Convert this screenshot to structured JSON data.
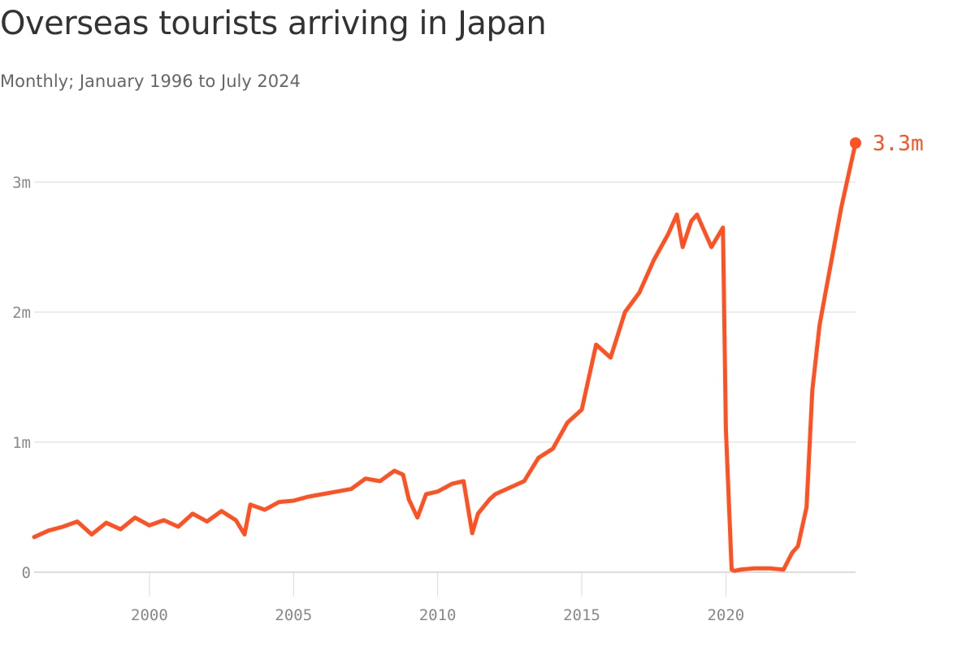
{
  "title": "Overseas tourists arriving in Japan",
  "subtitle": "Monthly; January 1996 to July 2024",
  "chart_data": {
    "type": "line",
    "title": "Overseas tourists arriving in Japan",
    "subtitle": "Monthly; January 1996 to July 2024",
    "xlabel": "",
    "ylabel": "",
    "color": "#ff5122",
    "grid": true,
    "legend": "none",
    "xlim": [
      1996,
      2024.5
    ],
    "ylim": [
      0,
      3300000
    ],
    "x_ticks": [
      {
        "value": 2000,
        "label": "2000"
      },
      {
        "value": 2005,
        "label": "2005"
      },
      {
        "value": 2010,
        "label": "2010"
      },
      {
        "value": 2015,
        "label": "2015"
      },
      {
        "value": 2020,
        "label": "2020"
      }
    ],
    "y_ticks": [
      {
        "value": 0,
        "label": "0"
      },
      {
        "value": 1000000,
        "label": "1m"
      },
      {
        "value": 2000000,
        "label": "2m"
      },
      {
        "value": 3000000,
        "label": "3m"
      }
    ],
    "end_label": "3.3m",
    "series": [
      {
        "x": [
          1996.0,
          1996.5,
          1997.0,
          1997.5,
          1998.0,
          1998.5,
          1999.0,
          1999.5,
          2000.0,
          2000.5,
          2001.0,
          2001.5,
          2002.0,
          2002.5,
          2003.0,
          2003.3,
          2003.5,
          2004.0,
          2004.5,
          2005.0,
          2005.5,
          2006.0,
          2006.5,
          2007.0,
          2007.5,
          2008.0,
          2008.5,
          2008.8,
          2009.0,
          2009.3,
          2009.6,
          2010.0,
          2010.5,
          2010.9,
          2011.2,
          2011.4,
          2011.8,
          2012.0,
          2012.5,
          2013.0,
          2013.5,
          2014.0,
          2014.5,
          2015.0,
          2015.5,
          2016.0,
          2016.5,
          2017.0,
          2017.5,
          2018.0,
          2018.3,
          2018.5,
          2018.8,
          2019.0,
          2019.5,
          2019.9,
          2020.0,
          2020.2,
          2020.3,
          2020.5,
          2021.0,
          2021.5,
          2022.0,
          2022.3,
          2022.5,
          2022.8,
          2023.0,
          2023.25,
          2023.5,
          2023.75,
          2024.0,
          2024.25,
          2024.5
        ],
        "values": [
          270000,
          320000,
          350000,
          390000,
          290000,
          380000,
          330000,
          420000,
          360000,
          400000,
          350000,
          450000,
          390000,
          470000,
          400000,
          290000,
          520000,
          480000,
          540000,
          550000,
          580000,
          600000,
          620000,
          640000,
          720000,
          700000,
          780000,
          750000,
          560000,
          420000,
          600000,
          620000,
          680000,
          700000,
          300000,
          450000,
          560000,
          600000,
          650000,
          700000,
          880000,
          950000,
          1150000,
          1250000,
          1750000,
          1650000,
          2000000,
          2150000,
          2400000,
          2600000,
          2750000,
          2500000,
          2700000,
          2750000,
          2500000,
          2650000,
          1100000,
          20000,
          10000,
          20000,
          30000,
          30000,
          20000,
          150000,
          200000,
          500000,
          1400000,
          1900000,
          2200000,
          2500000,
          2800000,
          3050000,
          3300000
        ]
      }
    ]
  }
}
